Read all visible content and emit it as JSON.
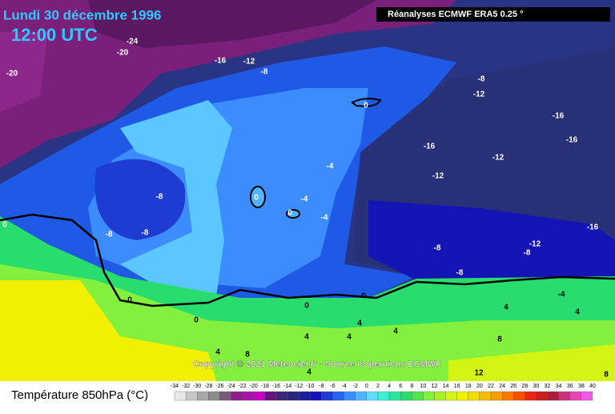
{
  "header": {
    "date": "Lundi 30 décembre 1996",
    "time": "12:00 UTC",
    "source": "Réanalyses ECMWF ERA5 0.25 °"
  },
  "copyright": "Copyright © 2021 Meteociel.fr - Source Copernicus ECMWF",
  "map": {
    "contour_labels": [
      "-24",
      "-20",
      "-20",
      "-16",
      "-12",
      "-8",
      "0",
      "-8",
      "-12",
      "-16",
      "-16",
      "-16",
      "-12",
      "-12",
      "-4",
      "-8",
      "-4",
      "0",
      "0",
      "-4",
      "-8",
      "-8",
      "0",
      "-16",
      "-12",
      "-8",
      "-8",
      "-8",
      "0",
      "0",
      "0",
      "0",
      "-4",
      "4",
      "4",
      "4",
      "4",
      "4",
      "4",
      "8",
      "4",
      "8",
      "4",
      "12",
      "8"
    ]
  },
  "legend": {
    "title": "Température 850hPa (°C)",
    "ticks": [
      "-34",
      "-32",
      "-30",
      "-28",
      "-26",
      "-24",
      "-22",
      "-20",
      "-18",
      "-16",
      "-14",
      "-12",
      "-10",
      "-8",
      "-6",
      "-4",
      "-2",
      "0",
      "2",
      "4",
      "6",
      "8",
      "10",
      "12",
      "14",
      "16",
      "18",
      "20",
      "22",
      "24",
      "26",
      "28",
      "30",
      "32",
      "34",
      "36",
      "38",
      "40"
    ],
    "colors": [
      "#e8e8e8",
      "#c8c8c8",
      "#a8a8a8",
      "#8c8c8c",
      "#7a5a7a",
      "#8c1e8c",
      "#a814a8",
      "#c800c8",
      "#64147a",
      "#3c2878",
      "#28287a",
      "#1e1e96",
      "#1414b4",
      "#1e3cd2",
      "#2864eb",
      "#3c8cff",
      "#50b4ff",
      "#64dcff",
      "#3cf0d2",
      "#28e6a0",
      "#28dc6e",
      "#50e650",
      "#82f03c",
      "#aaf028",
      "#d2f514",
      "#f0f000",
      "#f5dc00",
      "#f5be00",
      "#f5a000",
      "#f57800",
      "#f55000",
      "#e62814",
      "#c81e1e",
      "#aa1e3c",
      "#c8327a",
      "#e646b4",
      "#f05ae6"
    ]
  }
}
